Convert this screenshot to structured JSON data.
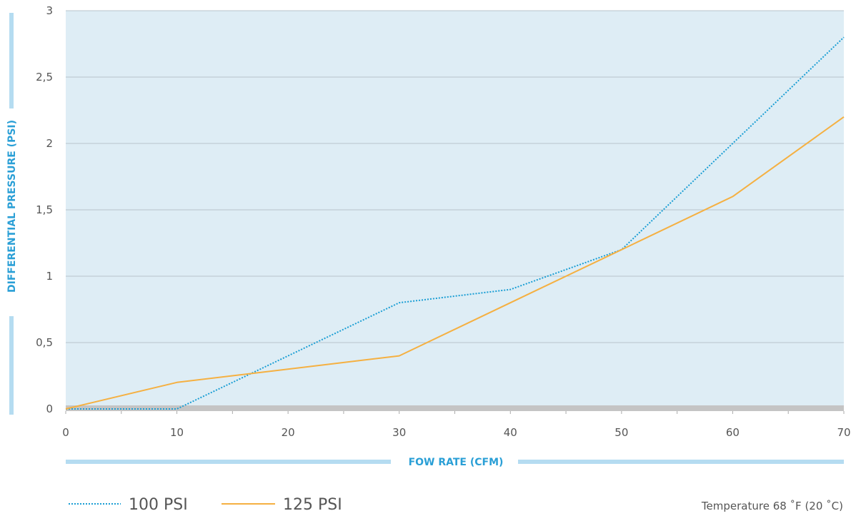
{
  "chart_data": {
    "type": "line",
    "title": "",
    "xlabel": "FOW RATE (CFM)",
    "ylabel": "DIFFERENTIAL PRESSURE (PSI)",
    "xlim": [
      0,
      70
    ],
    "ylim": [
      0,
      3
    ],
    "x_ticks": [
      "0",
      "10",
      "20",
      "30",
      "40",
      "50",
      "60",
      "70"
    ],
    "x_tick_values": [
      0,
      10,
      20,
      30,
      40,
      50,
      60,
      70
    ],
    "y_ticks": [
      "0",
      "0,5",
      "1",
      "1,5",
      "2",
      "2,5",
      "3"
    ],
    "y_tick_values": [
      0,
      0.5,
      1,
      1.5,
      2,
      2.5,
      3
    ],
    "grid": true,
    "legend_position": "bottom-left",
    "series": [
      {
        "name": "100 PSI",
        "color": "#1a9ed4",
        "style": "dotted",
        "x": [
          0,
          10,
          30,
          40,
          50,
          60,
          70
        ],
        "y": [
          0,
          0,
          0.8,
          0.9,
          1.2,
          2.0,
          2.8
        ]
      },
      {
        "name": "125 PSI",
        "color": "#f5b041",
        "style": "solid",
        "x": [
          0,
          10,
          30,
          40,
          50,
          60,
          70
        ],
        "y": [
          0,
          0.2,
          0.4,
          0.8,
          1.2,
          1.6,
          2.2
        ]
      }
    ],
    "annotation": "Temperature 68 ˚F (20 ˚C)"
  },
  "colors": {
    "plot_background": "#deedf5",
    "grid": "#b8c4cc",
    "baseline": "#c4c4c4",
    "axis_bar": "#b5dcf1",
    "axis_title": "#2a9fd6"
  }
}
